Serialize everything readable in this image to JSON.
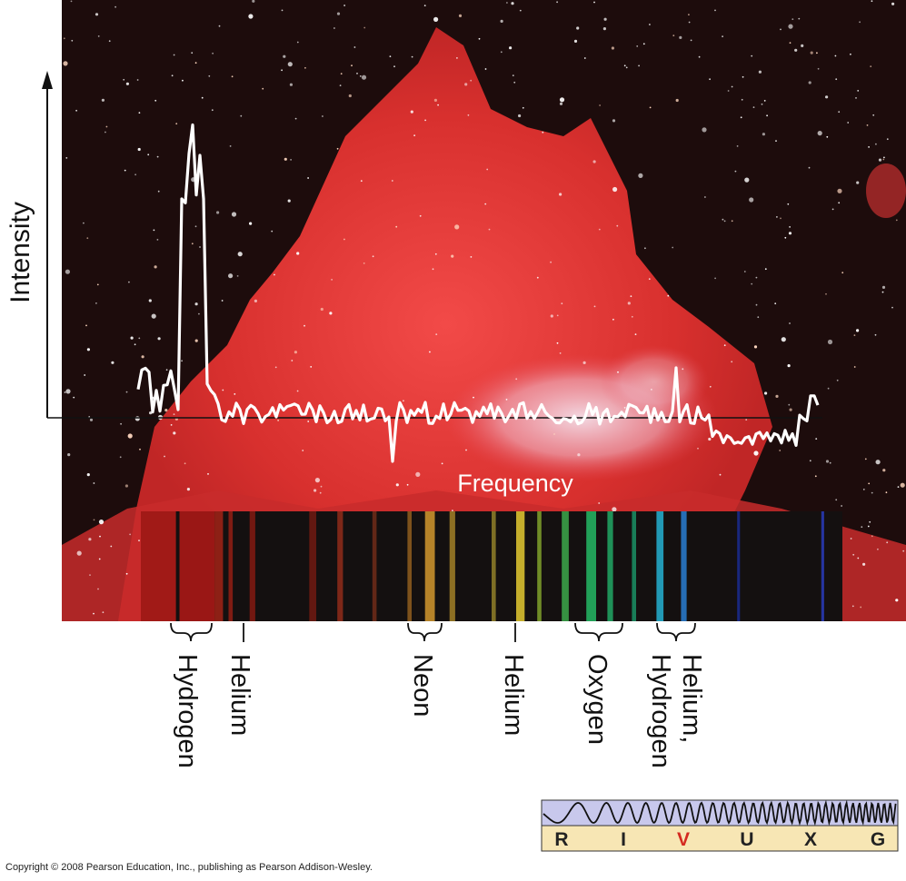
{
  "figure": {
    "y_axis_label": "Intensity",
    "x_axis_label": "Frequency",
    "element_labels": [
      {
        "text": "Hydrogen",
        "kind": "bracket"
      },
      {
        "text": "Helium",
        "kind": "tick"
      },
      {
        "text": "Neon",
        "kind": "bracket"
      },
      {
        "text": "Helium",
        "kind": "tick"
      },
      {
        "text": "Oxygen",
        "kind": "bracket"
      },
      {
        "text": "Hydrogen",
        "kind": "bracket"
      },
      {
        "text": "Helium,",
        "kind": "continuation"
      }
    ],
    "band_scale": {
      "bands": [
        "R",
        "I",
        "V",
        "U",
        "X",
        "G"
      ],
      "highlighted_band": "V",
      "highlight_color": "#d42a20",
      "wave_bg_color": "#c8c8ec",
      "label_bg_color": "#f7e6b4"
    },
    "copyright": "Copyright © 2008 Pearson Education, Inc., publishing as Pearson Addison-Wesley.",
    "colors": {
      "nebula": "#e23030",
      "space": "#1a0a0a",
      "trace": "#ffffff"
    },
    "spectrum_lines": [
      {
        "pos": 0.0,
        "color": "#b01c18",
        "w": 0.05
      },
      {
        "pos": 0.055,
        "color": "#a81816",
        "w": 0.05
      },
      {
        "pos": 0.105,
        "color": "#9a2216",
        "w": 0.012
      },
      {
        "pos": 0.125,
        "color": "#8c1e14",
        "w": 0.006
      },
      {
        "pos": 0.155,
        "color": "#7c1a12",
        "w": 0.008
      },
      {
        "pos": 0.24,
        "color": "#6a1a12",
        "w": 0.01
      },
      {
        "pos": 0.28,
        "color": "#8a2a1a",
        "w": 0.008
      },
      {
        "pos": 0.33,
        "color": "#6a2a18",
        "w": 0.006
      },
      {
        "pos": 0.38,
        "color": "#8a5a1e",
        "w": 0.006
      },
      {
        "pos": 0.405,
        "color": "#c8902c",
        "w": 0.014
      },
      {
        "pos": 0.44,
        "color": "#9a7a26",
        "w": 0.008
      },
      {
        "pos": 0.5,
        "color": "#8a7a28",
        "w": 0.006
      },
      {
        "pos": 0.535,
        "color": "#d8c030",
        "w": 0.012
      },
      {
        "pos": 0.565,
        "color": "#7a9a2a",
        "w": 0.006
      },
      {
        "pos": 0.6,
        "color": "#3aa048",
        "w": 0.01
      },
      {
        "pos": 0.635,
        "color": "#24b060",
        "w": 0.014
      },
      {
        "pos": 0.665,
        "color": "#20a060",
        "w": 0.008
      },
      {
        "pos": 0.7,
        "color": "#1a8a60",
        "w": 0.006
      },
      {
        "pos": 0.735,
        "color": "#24a8c8",
        "w": 0.01
      },
      {
        "pos": 0.77,
        "color": "#2878c8",
        "w": 0.008
      },
      {
        "pos": 0.85,
        "color": "#1a2a8a",
        "w": 0.004
      },
      {
        "pos": 0.97,
        "color": "#2838b0",
        "w": 0.004
      }
    ]
  }
}
